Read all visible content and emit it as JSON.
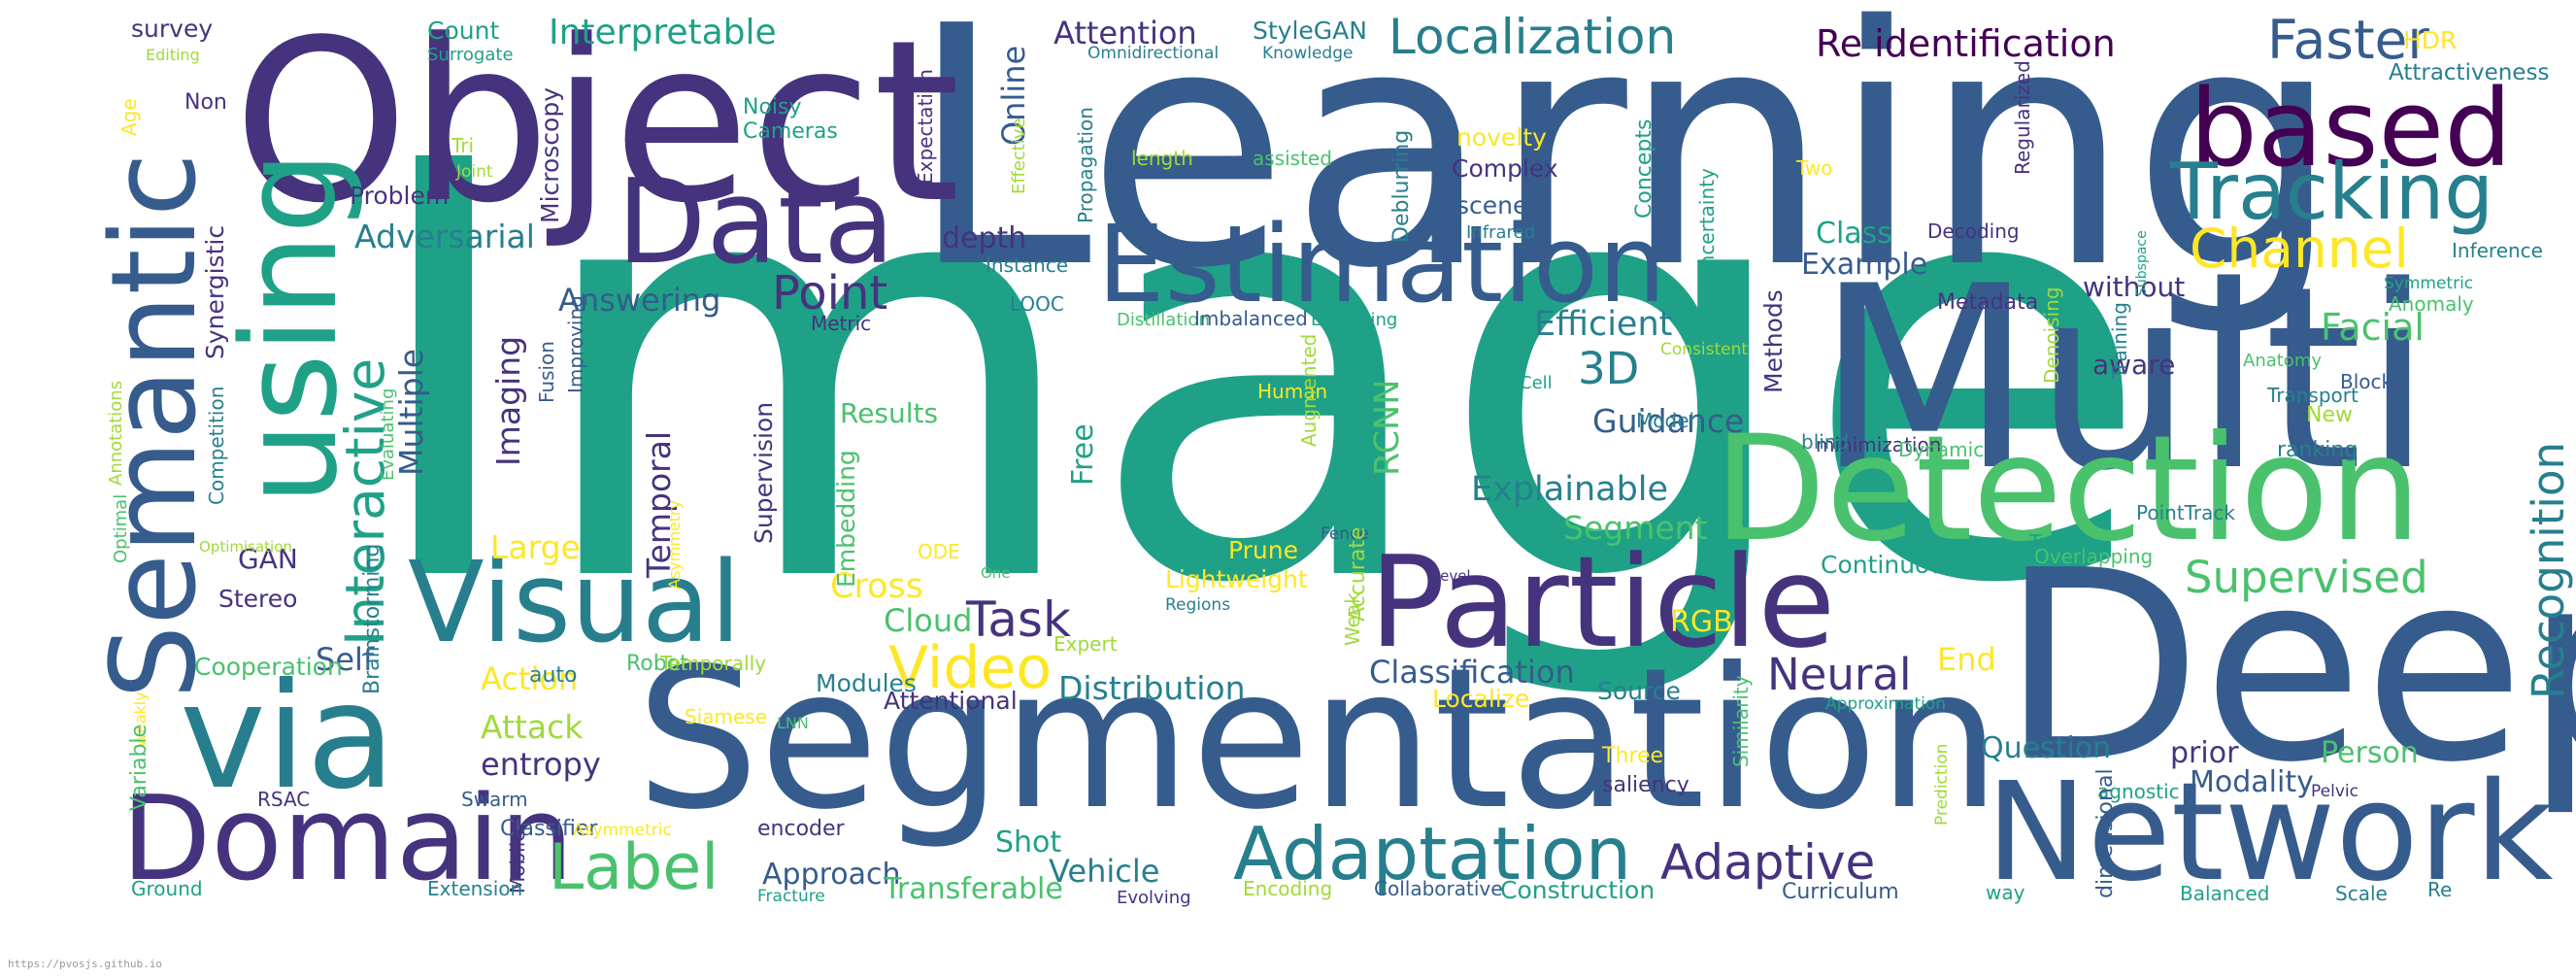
{
  "palette": {
    "d1": "#440154",
    "d2": "#46337e",
    "d3": "#365c8d",
    "d4": "#277f8e",
    "d5": "#1fa187",
    "d6": "#4ac16d",
    "d7": "#a0da39",
    "d8": "#fde725"
  },
  "words": [
    "Image",
    "Learning",
    "Object",
    "Multi",
    "Deep",
    "Segmentation",
    "Detection",
    "Network",
    "Data",
    "Estimation",
    "Semantic",
    "using",
    "Particle",
    "via",
    "Domain",
    "Visual",
    "Adaptation",
    "based",
    "Tracking",
    "Faster",
    "Localization",
    "Re identification",
    "Interactive",
    "Channel",
    "Recognition",
    "Supervised",
    "Facial",
    "Adaptive",
    "Label",
    "Task",
    "Video",
    "Point",
    "3D",
    "Explainable",
    "Neural",
    "Efficient",
    "Guidance",
    "Segment",
    "Classification",
    "Distribution",
    "Cross",
    "Cloud",
    "Action",
    "Attack",
    "entropy",
    "Large",
    "Temporal",
    "Imaging",
    "Multiple",
    "Adversarial",
    "Answering",
    "Self",
    "GAN",
    "Stereo",
    "Interpretable",
    "Attention",
    "StyleGAN",
    "HDR",
    "Attractiveness",
    "survey",
    "Count",
    "Surrogate",
    "Editing",
    "Non",
    "Tri",
    "Joint",
    "Noisy",
    "Cameras",
    "Microscopy",
    "Problem",
    "Synergistic",
    "Competition",
    "Annotations",
    "Optimal",
    "Age",
    "Online",
    "Expectation",
    "Effective",
    "Propagation",
    "length",
    "assisted",
    "Omnidirectional",
    "Knowledge",
    "Deblurring",
    "novelty",
    "Complex",
    "scene",
    "Infrared",
    "Concepts",
    "Uncertainty",
    "Regularized",
    "Two",
    "Decoding",
    "Class",
    "Example",
    "depth",
    "Instance",
    "LOOC",
    "Metric",
    "Distillation",
    "Imbalanced",
    "Exploiting",
    "Metadata",
    "without",
    "Inference",
    "Symmetric",
    "Anomaly",
    "aware",
    "Consistent",
    "Human",
    "Augmented",
    "Cell",
    "Methods",
    "Model",
    "Denoising",
    "Training",
    "Subspace",
    "Anatomy",
    "Blocks",
    "Transport",
    "New",
    "ranking",
    "minimization",
    "Dynamic",
    "blind",
    "Results",
    "Free",
    "Supervision",
    "Embedding",
    "Improving",
    "Fusion",
    "Evaluating",
    "Optimisation",
    "ODE",
    "Prune",
    "Fence",
    "RCNN",
    "Level",
    "Lightweight",
    "Regions",
    "Accurate",
    "One",
    "Asymmetry",
    "Continuous",
    "Overlapping",
    "PointTrack",
    "Truth",
    "Competence",
    "RGB",
    "End",
    "Weak",
    "Expert",
    "Localize",
    "Source",
    "Approximation",
    "Similarity",
    "Attentional",
    "Modules",
    "Robot",
    "Temporally",
    "Cooperation",
    "Brainstorming",
    "auto",
    "Siamese",
    "LNN",
    "Weakly",
    "Variable",
    "RSAC",
    "Swarm",
    "Classifier",
    "Asymmetric",
    "encoder",
    "Mobile",
    "Three",
    "saliency",
    "Question",
    "prior",
    "Person",
    "Modality",
    "agnostic",
    "Pelvic",
    "Prediction",
    "Shot",
    "Approach",
    "Vehicle",
    "Transferable",
    "Ground",
    "Extension",
    "Fracture",
    "Evolving",
    "Encoding",
    "Collaborative",
    "Construction",
    "Curriculum",
    "way",
    "dimensional",
    "Balanced",
    "Scale",
    "Re"
  ],
  "footer": "https://pvosjs.github.io"
}
